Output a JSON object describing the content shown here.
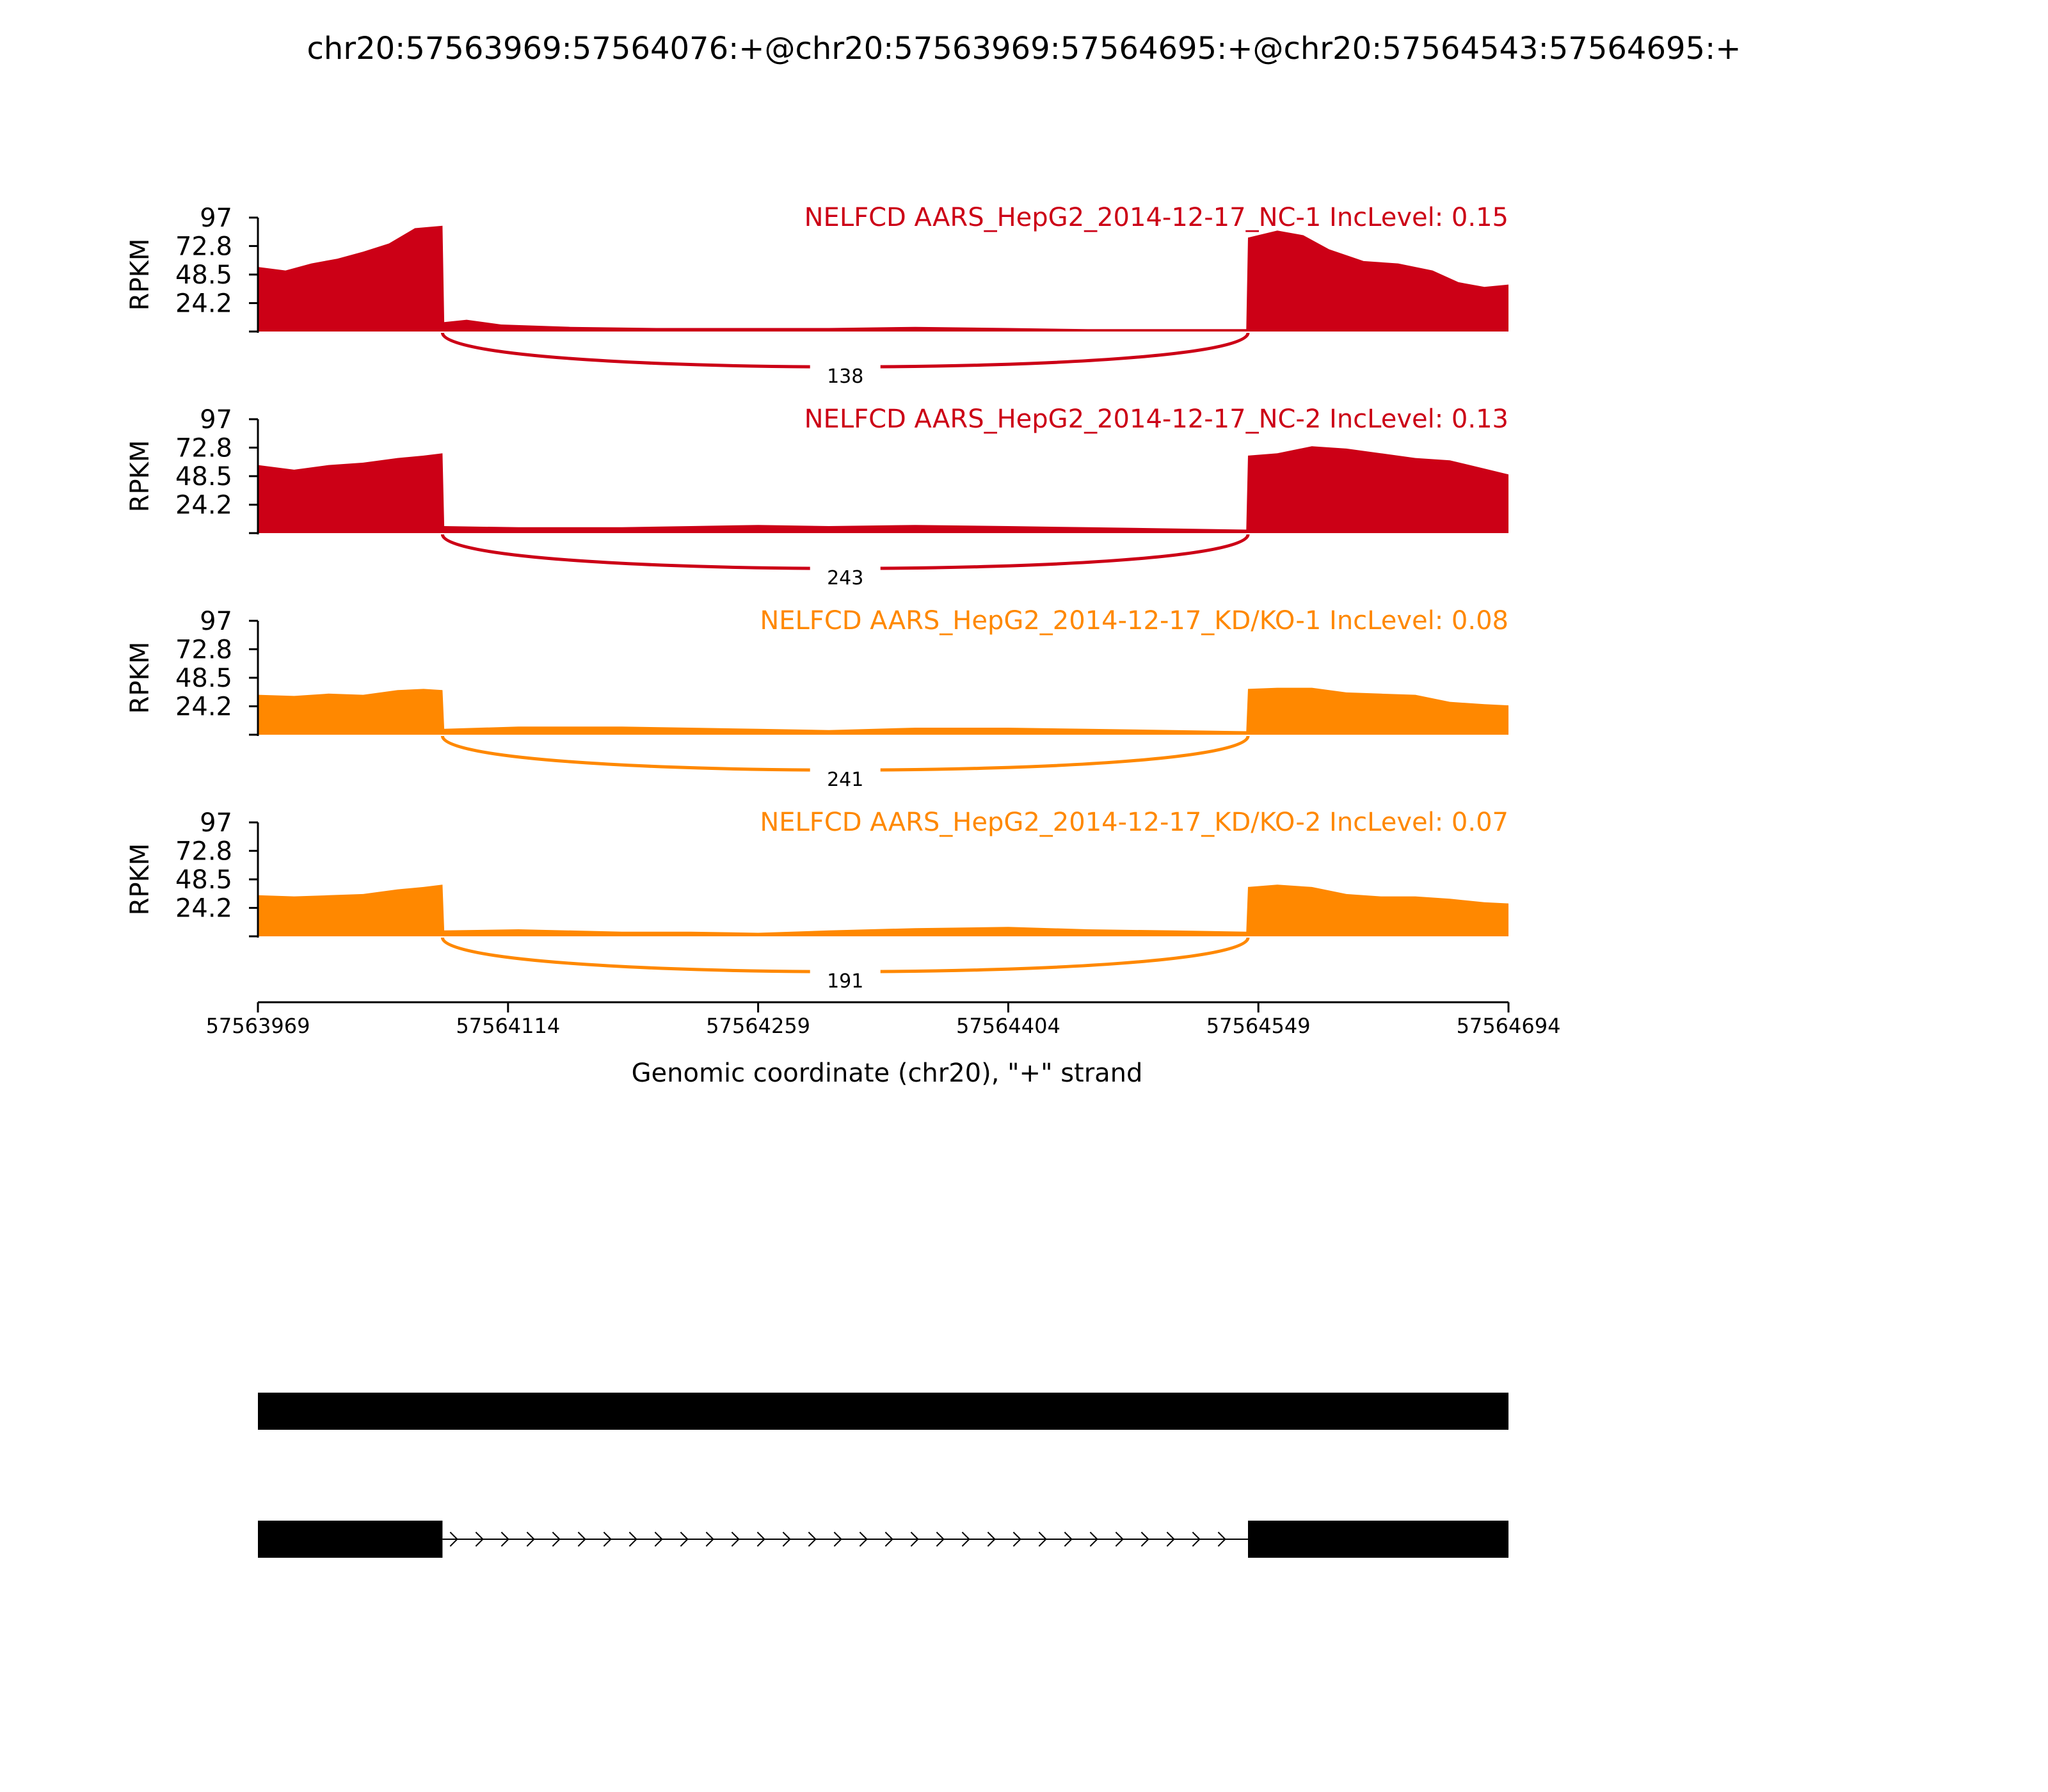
{
  "chart_data": {
    "type": "area",
    "title": "chr20:57563969:57564076:+@chr20:57563969:57564695:+@chr20:57564543:57564695:+",
    "xlabel": "Genomic coordinate (chr20), \"+\" strand",
    "ylabel": "RPKM",
    "x_range": [
      57563969,
      57564694
    ],
    "x_ticks": [
      "57563969",
      "57564114",
      "57564259",
      "57564404",
      "57564549",
      "57564694"
    ],
    "y_range": [
      0,
      97
    ],
    "y_ticks": [
      "24.2",
      "48.5",
      "72.8",
      "97"
    ],
    "colors": {
      "NC": "#cc0016",
      "KD": "#ff8800",
      "exon": "#000000"
    },
    "exon1": [
      57563969,
      57564076
    ],
    "exon2": [
      57564543,
      57564694
    ],
    "tracks": [
      {
        "label": "NELFCD AARS_HepG2_2014-12-17_NC-1 IncLevel: 0.15",
        "group": "NC",
        "junction_count": "138",
        "profile": [
          [
            57563969,
            55
          ],
          [
            57563985,
            52
          ],
          [
            57564000,
            58
          ],
          [
            57564015,
            62
          ],
          [
            57564030,
            68
          ],
          [
            57564045,
            75
          ],
          [
            57564060,
            88
          ],
          [
            57564076,
            90
          ],
          [
            57564077,
            8
          ],
          [
            57564090,
            10
          ],
          [
            57564110,
            6
          ],
          [
            57564150,
            4
          ],
          [
            57564200,
            3
          ],
          [
            57564259,
            3
          ],
          [
            57564300,
            3
          ],
          [
            57564350,
            4
          ],
          [
            57564404,
            3
          ],
          [
            57564450,
            2
          ],
          [
            57564542,
            2
          ],
          [
            57564543,
            80
          ],
          [
            57564560,
            86
          ],
          [
            57564575,
            82
          ],
          [
            57564590,
            70
          ],
          [
            57564610,
            60
          ],
          [
            57564630,
            58
          ],
          [
            57564650,
            52
          ],
          [
            57564665,
            42
          ],
          [
            57564680,
            38
          ],
          [
            57564694,
            40
          ]
        ]
      },
      {
        "label": "NELFCD AARS_HepG2_2014-12-17_NC-2 IncLevel: 0.13",
        "group": "NC",
        "junction_count": "243",
        "profile": [
          [
            57563969,
            58
          ],
          [
            57563990,
            54
          ],
          [
            57564010,
            58
          ],
          [
            57564030,
            60
          ],
          [
            57564050,
            64
          ],
          [
            57564065,
            66
          ],
          [
            57564076,
            68
          ],
          [
            57564077,
            6
          ],
          [
            57564120,
            5
          ],
          [
            57564180,
            5
          ],
          [
            57564220,
            6
          ],
          [
            57564259,
            7
          ],
          [
            57564300,
            6
          ],
          [
            57564350,
            7
          ],
          [
            57564404,
            6
          ],
          [
            57564450,
            5
          ],
          [
            57564500,
            4
          ],
          [
            57564542,
            3
          ],
          [
            57564543,
            66
          ],
          [
            57564560,
            68
          ],
          [
            57564580,
            74
          ],
          [
            57564600,
            72
          ],
          [
            57564620,
            68
          ],
          [
            57564640,
            64
          ],
          [
            57564660,
            62
          ],
          [
            57564680,
            55
          ],
          [
            57564694,
            50
          ]
        ]
      },
      {
        "label": "NELFCD AARS_HepG2_2014-12-17_KD/KO-1 IncLevel: 0.08",
        "group": "KD",
        "junction_count": "241",
        "profile": [
          [
            57563969,
            34
          ],
          [
            57563990,
            33
          ],
          [
            57564010,
            35
          ],
          [
            57564030,
            34
          ],
          [
            57564050,
            38
          ],
          [
            57564065,
            39
          ],
          [
            57564076,
            38
          ],
          [
            57564077,
            5
          ],
          [
            57564120,
            7
          ],
          [
            57564180,
            7
          ],
          [
            57564220,
            6
          ],
          [
            57564259,
            5
          ],
          [
            57564300,
            4
          ],
          [
            57564350,
            6
          ],
          [
            57564404,
            6
          ],
          [
            57564450,
            5
          ],
          [
            57564500,
            4
          ],
          [
            57564542,
            3
          ],
          [
            57564543,
            39
          ],
          [
            57564560,
            40
          ],
          [
            57564580,
            40
          ],
          [
            57564600,
            36
          ],
          [
            57564620,
            35
          ],
          [
            57564640,
            34
          ],
          [
            57564660,
            28
          ],
          [
            57564680,
            26
          ],
          [
            57564694,
            25
          ]
        ]
      },
      {
        "label": "NELFCD AARS_HepG2_2014-12-17_KD/KO-2 IncLevel: 0.07",
        "group": "KD",
        "junction_count": "191",
        "profile": [
          [
            57563969,
            35
          ],
          [
            57563990,
            34
          ],
          [
            57564010,
            35
          ],
          [
            57564030,
            36
          ],
          [
            57564050,
            40
          ],
          [
            57564065,
            42
          ],
          [
            57564076,
            44
          ],
          [
            57564077,
            5
          ],
          [
            57564120,
            6
          ],
          [
            57564180,
            4
          ],
          [
            57564220,
            4
          ],
          [
            57564259,
            3
          ],
          [
            57564300,
            5
          ],
          [
            57564350,
            7
          ],
          [
            57564404,
            8
          ],
          [
            57564450,
            6
          ],
          [
            57564500,
            5
          ],
          [
            57564542,
            4
          ],
          [
            57564543,
            42
          ],
          [
            57564560,
            44
          ],
          [
            57564580,
            42
          ],
          [
            57564600,
            36
          ],
          [
            57564620,
            34
          ],
          [
            57564640,
            34
          ],
          [
            57564660,
            32
          ],
          [
            57564680,
            29
          ],
          [
            57564694,
            28
          ]
        ]
      }
    ],
    "transcripts": [
      {
        "exons": [
          [
            57563969,
            57564694
          ]
        ]
      },
      {
        "exons": [
          [
            57563969,
            57564076
          ],
          [
            57564543,
            57564694
          ]
        ]
      }
    ]
  }
}
